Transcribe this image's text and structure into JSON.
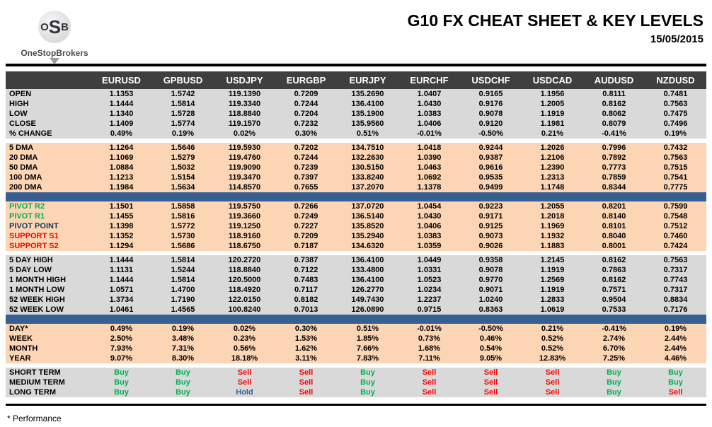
{
  "logo": {
    "monogram_letters": [
      "O",
      "S",
      "B"
    ],
    "brand": "OneStopBrokers"
  },
  "header": {
    "title": "G10 FX CHEAT SHEET & KEY LEVELS",
    "date": "15/05/2015"
  },
  "colors": {
    "header_bg": "#3f3f3f",
    "section_gray": "#d9d9d9",
    "section_peach": "#fcd5b4",
    "divider_blue": "#376092",
    "buy_green": "#00b050",
    "sell_red": "#ff0000",
    "hold_blue": "#376092",
    "pivot_r_green": "#00b050",
    "pivot_point_navy": "#17375e",
    "support_red": "#ff0000"
  },
  "table": {
    "columns": [
      "EURUSD",
      "GPBUSD",
      "USDJPY",
      "EURGBP",
      "EURJPY",
      "EURCHF",
      "USDCHF",
      "USDCAD",
      "AUDUSD",
      "NZDUSD"
    ],
    "sections": [
      {
        "id": "ohlc",
        "bg": "gray",
        "rows": [
          {
            "label": "OPEN",
            "values": [
              "1.1353",
              "1.5742",
              "119.1390",
              "0.7209",
              "135.2690",
              "1.0407",
              "0.9165",
              "1.1956",
              "0.8111",
              "0.7481"
            ]
          },
          {
            "label": "HIGH",
            "values": [
              "1.1444",
              "1.5814",
              "119.3340",
              "0.7244",
              "136.4100",
              "1.0430",
              "0.9176",
              "1.2005",
              "0.8162",
              "0.7563"
            ]
          },
          {
            "label": "LOW",
            "values": [
              "1.1340",
              "1.5728",
              "118.8840",
              "0.7204",
              "135.1900",
              "1.0383",
              "0.9078",
              "1.1919",
              "0.8062",
              "0.7475"
            ]
          },
          {
            "label": "CLOSE",
            "values": [
              "1.1409",
              "1.5774",
              "119.1570",
              "0.7232",
              "135.9560",
              "1.0406",
              "0.9120",
              "1.1981",
              "0.8079",
              "0.7496"
            ]
          },
          {
            "label": "% CHANGE",
            "values": [
              "0.49%",
              "0.19%",
              "0.02%",
              "0.30%",
              "0.51%",
              "-0.01%",
              "-0.50%",
              "0.21%",
              "-0.41%",
              "0.19%"
            ]
          }
        ]
      },
      {
        "id": "dma",
        "bg": "peach",
        "rows": [
          {
            "label": "5 DMA",
            "values": [
              "1.1264",
              "1.5646",
              "119.5930",
              "0.7202",
              "134.7510",
              "1.0418",
              "0.9244",
              "1.2026",
              "0.7996",
              "0.7432"
            ]
          },
          {
            "label": "20 DMA",
            "values": [
              "1.1069",
              "1.5279",
              "119.4760",
              "0.7244",
              "132.2630",
              "1.0390",
              "0.9387",
              "1.2106",
              "0.7892",
              "0.7563"
            ]
          },
          {
            "label": "50 DMA",
            "values": [
              "1.0884",
              "1.5032",
              "119.9090",
              "0.7239",
              "130.5150",
              "1.0463",
              "0.9616",
              "1.2390",
              "0.7773",
              "0.7515"
            ]
          },
          {
            "label": "100 DMA",
            "values": [
              "1.1213",
              "1.5154",
              "119.3470",
              "0.7397",
              "133.8240",
              "1.0692",
              "0.9535",
              "1.2313",
              "0.7859",
              "0.7541"
            ]
          },
          {
            "label": "200 DMA",
            "values": [
              "1.1984",
              "1.5634",
              "114.8570",
              "0.7655",
              "137.2070",
              "1.1378",
              "0.9499",
              "1.1748",
              "0.8344",
              "0.7775"
            ]
          }
        ]
      },
      {
        "id": "divider-1",
        "type": "divider"
      },
      {
        "id": "pivots",
        "bg": "peach",
        "rows": [
          {
            "label": "PIVOT R2",
            "label_color": "green",
            "values": [
              "1.1501",
              "1.5858",
              "119.5750",
              "0.7266",
              "137.0720",
              "1.0454",
              "0.9223",
              "1.2055",
              "0.8201",
              "0.7599"
            ]
          },
          {
            "label": "PIVOT R1",
            "label_color": "green",
            "values": [
              "1.1455",
              "1.5816",
              "119.3660",
              "0.7249",
              "136.5140",
              "1.0430",
              "0.9171",
              "1.2018",
              "0.8140",
              "0.7548"
            ]
          },
          {
            "label": "PIVOT POINT",
            "label_color": "navy",
            "values": [
              "1.1398",
              "1.5772",
              "119.1250",
              "0.7227",
              "135.8520",
              "1.0406",
              "0.9125",
              "1.1969",
              "0.8101",
              "0.7512"
            ]
          },
          {
            "label": "SUPPORT S1",
            "label_color": "red",
            "values": [
              "1.1352",
              "1.5730",
              "118.9160",
              "0.7209",
              "135.2940",
              "1.0383",
              "0.9073",
              "1.1932",
              "0.8040",
              "0.7460"
            ]
          },
          {
            "label": "SUPPORT S2",
            "label_color": "red",
            "values": [
              "1.1294",
              "1.5686",
              "118.6750",
              "0.7187",
              "134.6320",
              "1.0359",
              "0.9026",
              "1.1883",
              "0.8001",
              "0.7424"
            ]
          }
        ]
      },
      {
        "id": "ranges",
        "bg": "gray",
        "rows": [
          {
            "label": "5 DAY HIGH",
            "values": [
              "1.1444",
              "1.5814",
              "120.2720",
              "0.7387",
              "136.4100",
              "1.0449",
              "0.9358",
              "1.2145",
              "0.8162",
              "0.7563"
            ]
          },
          {
            "label": "5 DAY LOW",
            "values": [
              "1.1131",
              "1.5244",
              "118.8840",
              "0.7122",
              "133.4800",
              "1.0331",
              "0.9078",
              "1.1919",
              "0.7863",
              "0.7317"
            ]
          },
          {
            "label": "1 MONTH HIGH",
            "values": [
              "1.1444",
              "1.5814",
              "120.5000",
              "0.7483",
              "136.4100",
              "1.0523",
              "0.9770",
              "1.2569",
              "0.8162",
              "0.7743"
            ]
          },
          {
            "label": "1 MONTH LOW",
            "values": [
              "1.0571",
              "1.4700",
              "118.4920",
              "0.7117",
              "126.2770",
              "1.0234",
              "0.9071",
              "1.1919",
              "0.7571",
              "0.7317"
            ]
          },
          {
            "label": "52 WEEK HIGH",
            "values": [
              "1.3734",
              "1.7190",
              "122.0150",
              "0.8182",
              "149.7430",
              "1.2237",
              "1.0240",
              "1.2833",
              "0.9504",
              "0.8834"
            ]
          },
          {
            "label": "52 WEEK LOW",
            "values": [
              "1.0461",
              "1.4565",
              "100.8240",
              "0.7013",
              "126.0890",
              "0.9715",
              "0.8363",
              "1.0619",
              "0.7533",
              "0.7176"
            ]
          }
        ]
      },
      {
        "id": "divider-2",
        "type": "divider"
      },
      {
        "id": "performance",
        "bg": "peach",
        "rows": [
          {
            "label": "DAY*",
            "values": [
              "0.49%",
              "0.19%",
              "0.02%",
              "0.30%",
              "0.51%",
              "-0.01%",
              "-0.50%",
              "0.21%",
              "-0.41%",
              "0.19%"
            ]
          },
          {
            "label": "WEEK",
            "values": [
              "2.50%",
              "3.48%",
              "0.23%",
              "1.53%",
              "1.85%",
              "0.73%",
              "0.46%",
              "0.52%",
              "2.74%",
              "2.44%"
            ]
          },
          {
            "label": "MONTH",
            "values": [
              "7.93%",
              "7.31%",
              "0.56%",
              "1.62%",
              "7.66%",
              "1.68%",
              "0.54%",
              "0.52%",
              "6.70%",
              "2.44%"
            ]
          },
          {
            "label": "YEAR",
            "values": [
              "9.07%",
              "8.30%",
              "18.18%",
              "3.11%",
              "7.83%",
              "7.11%",
              "9.05%",
              "12.83%",
              "7.25%",
              "4.46%"
            ]
          }
        ]
      },
      {
        "id": "outlook",
        "bg": "gray",
        "colored_values": true,
        "rows": [
          {
            "label": "SHORT TERM",
            "values": [
              "Buy",
              "Buy",
              "Sell",
              "Sell",
              "Buy",
              "Sell",
              "Sell",
              "Sell",
              "Buy",
              "Buy"
            ]
          },
          {
            "label": "MEDIUM TERM",
            "values": [
              "Buy",
              "Buy",
              "Sell",
              "Sell",
              "Buy",
              "Sell",
              "Sell",
              "Sell",
              "Buy",
              "Buy"
            ]
          },
          {
            "label": "LONG TERM",
            "values": [
              "Buy",
              "Buy",
              "Hold",
              "Sell",
              "Buy",
              "Sell",
              "Sell",
              "Sell",
              "Buy",
              "Sell"
            ]
          }
        ]
      }
    ]
  },
  "footer": {
    "note": "* Performance"
  }
}
